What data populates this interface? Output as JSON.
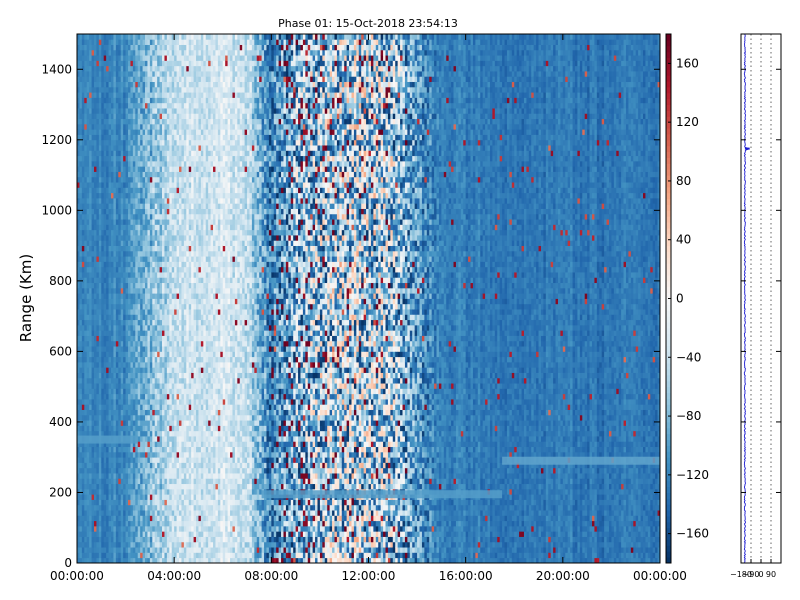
{
  "chart_data": {
    "type": "heatmap",
    "title": "Phase 01: 15-Oct-2018 23:54:13",
    "ylabel": "Range (Km)",
    "xlabel": "",
    "x_ticks": [
      "00:00:00",
      "04:00:00",
      "08:00:00",
      "12:00:00",
      "16:00:00",
      "20:00:00",
      "00:00:00"
    ],
    "x_range_hours": [
      0,
      24
    ],
    "y_ticks": [
      0,
      200,
      400,
      600,
      800,
      1000,
      1200,
      1400
    ],
    "ylim": [
      0,
      1500
    ],
    "colorbar": {
      "colormap": "RdBu_r",
      "range": [
        -180,
        180
      ],
      "ticks": [
        -160,
        -120,
        -80,
        -40,
        0,
        40,
        80,
        120,
        160
      ]
    },
    "time_columns_phase_deg": {
      "hours": [
        0,
        1,
        2,
        3,
        4,
        5,
        6,
        7,
        8,
        9,
        10,
        11,
        12,
        13,
        14,
        15,
        16,
        17,
        18,
        19,
        20,
        21,
        22,
        23
      ],
      "typical_phase": [
        -120,
        -120,
        -115,
        -80,
        -40,
        -35,
        -30,
        -40,
        -125,
        -90,
        -70,
        -60,
        -60,
        -65,
        -110,
        -125,
        -125,
        -125,
        -130,
        -130,
        -125,
        -130,
        -130,
        -130
      ],
      "scatter_deg": [
        10,
        10,
        15,
        40,
        30,
        25,
        25,
        30,
        60,
        110,
        130,
        130,
        130,
        120,
        60,
        15,
        15,
        12,
        12,
        12,
        12,
        12,
        12,
        12
      ]
    },
    "features": [
      {
        "label": "layer",
        "range_km": 195,
        "from_hour": 7.6,
        "to_hour": 17.5,
        "phase_deg": -100
      },
      {
        "label": "layer",
        "range_km": 290,
        "from_hour": 17.5,
        "to_hour": 24,
        "phase_deg": -95
      },
      {
        "label": "layer",
        "range_km": 350,
        "from_hour": 0,
        "to_hour": 2.5,
        "phase_deg": -100
      }
    ],
    "side_profile": {
      "x_ticks": [
        "-180",
        "-90",
        "0",
        "90"
      ],
      "xlim": [
        -180,
        180
      ],
      "typical_phase": -145,
      "spike_range_km": 1175,
      "spike_phase_deg": -120
    }
  }
}
